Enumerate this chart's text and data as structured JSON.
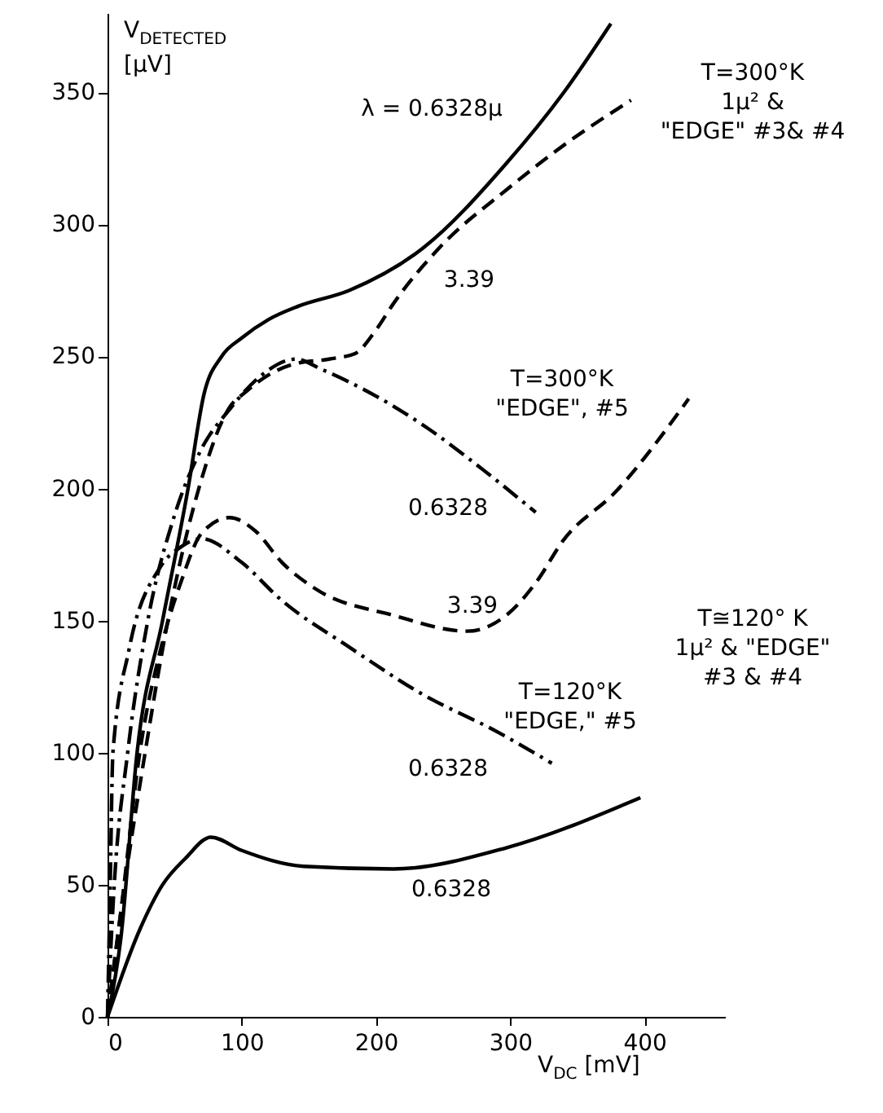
{
  "chart_data": {
    "type": "line",
    "xlabel": "V$_{DC}$ [mV]",
    "ylabel": "V$_{DETECTED}$\n[μV]",
    "xlim": [
      0,
      460
    ],
    "ylim": [
      0,
      380
    ],
    "xticks": [
      0,
      100,
      200,
      300,
      400
    ],
    "yticks": [
      0,
      50,
      100,
      150,
      200,
      250,
      300,
      350
    ],
    "series": [
      {
        "type": "line",
        "color": "#000000",
        "line_style": "solid",
        "x": [
          0,
          10,
          22,
          41,
          60,
          72,
          85,
          100,
          120,
          142,
          180,
          235,
          297,
          340,
          375
        ],
        "values": [
          0,
          30,
          100,
          150,
          200,
          236,
          250,
          257,
          264,
          269,
          275,
          291,
          323,
          350,
          376
        ]
      },
      {
        "type": "line",
        "color": "#000000",
        "line_style": "dashed",
        "x": [
          0,
          10,
          28,
          45,
          68,
          90,
          104,
          120,
          138,
          165,
          184,
          200,
          213,
          247,
          297,
          340,
          390
        ],
        "values": [
          0,
          40,
          100,
          150,
          200,
          230,
          237,
          243,
          247,
          249,
          251,
          260,
          270,
          291,
          313,
          330,
          347
        ]
      },
      {
        "type": "line",
        "color": "#000000",
        "line_style": "dashdot",
        "x": [
          0,
          5,
          15,
          30,
          50,
          70,
          91,
          115,
          140,
          160,
          200,
          238,
          280,
          319
        ],
        "values": [
          0,
          50,
          100,
          150,
          190,
          215,
          230,
          243,
          249,
          245,
          235,
          223,
          207,
          191
        ]
      },
      {
        "type": "line",
        "color": "#000000",
        "line_style": "dashed",
        "x": [
          0,
          10,
          24,
          40,
          55,
          70,
          91,
          110,
          130,
          155,
          213,
          268,
          297,
          320,
          339,
          379,
          433
        ],
        "values": [
          0,
          40,
          100,
          140,
          165,
          183,
          189,
          184,
          172,
          162,
          152,
          146,
          152,
          165,
          180,
          199,
          234
        ]
      },
      {
        "type": "line",
        "color": "#000000",
        "line_style": "dashdot",
        "x": [
          0,
          2,
          4,
          16,
          39,
          55,
          70,
          100,
          129,
          180,
          235,
          290,
          331
        ],
        "values": [
          0,
          50,
          100,
          139,
          170,
          178,
          181,
          172,
          158,
          140,
          122,
          108,
          96
        ]
      },
      {
        "type": "line",
        "color": "#000000",
        "line_style": "solid",
        "x": [
          0,
          24,
          41,
          58,
          77,
          100,
          146,
          213,
          297,
          397
        ],
        "values": [
          0,
          33,
          50,
          60,
          68,
          63,
          57,
          56,
          64,
          83
        ]
      }
    ],
    "annotations": [
      "λ = 0.6328μ",
      "3.39",
      "T=300°K\n\"EDGE\", #5",
      "0.6328",
      "3.39",
      "T=120°K\n\"EDGE,\" #5",
      "0.6328",
      "0.6328",
      "T=300°K\n1μ² &\n\"EDGE\" #3& #4",
      "T≅120° K\n1μ² & \"EDGE\"\n#3 & #4"
    ]
  }
}
